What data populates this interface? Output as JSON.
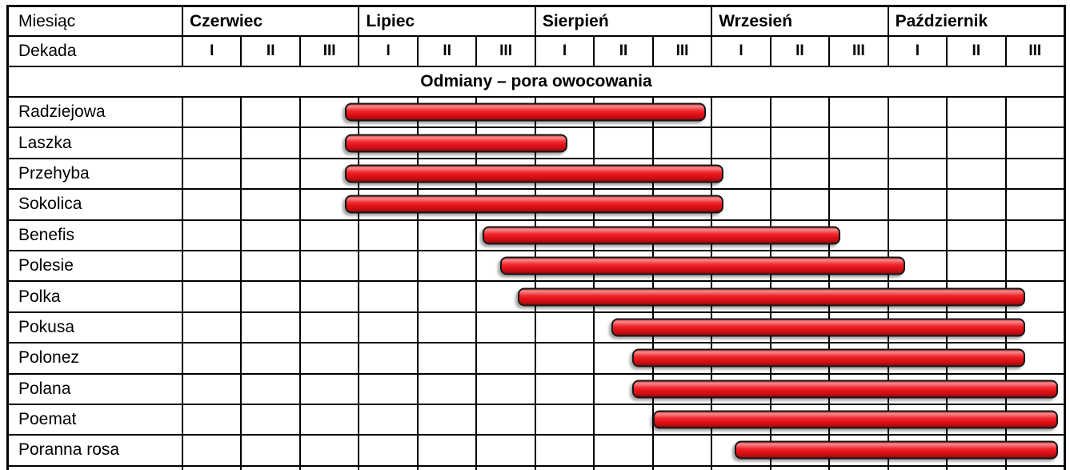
{
  "table": {
    "month_label": "Miesiąc",
    "decade_label": "Dekada",
    "section_title": "Odmiany – pora owocowania"
  },
  "colors": {
    "grid_line": "#000000",
    "background": "#ffffff",
    "text": "#000000",
    "bar_fill": "#e31218",
    "bar_highlight": "#f9898b",
    "bar_shadow_dark": "#8f0a0d",
    "bar_border": "#161616"
  },
  "chart_data": {
    "type": "bar",
    "subtype": "gantt-table",
    "title": "Odmiany – pora owocowania",
    "x_axis": {
      "months": [
        "Czerwiec",
        "Lipiec",
        "Sierpień",
        "Wrzesień",
        "Październik"
      ],
      "decade_labels": [
        "I",
        "II",
        "III"
      ],
      "decades_per_month": 3,
      "total_decades": 15,
      "unit": "dekada (1/3 miesiąca)"
    },
    "axis_note": "start/end w dekadach od początku czerwca: 0 = początek Czerwiec I, 15 = koniec Październik III",
    "series": [
      {
        "name": "Radziejowa",
        "start_decade": 2.75,
        "end_decade": 8.9
      },
      {
        "name": "Laszka",
        "start_decade": 2.75,
        "end_decade": 6.55
      },
      {
        "name": "Przehyba",
        "start_decade": 2.75,
        "end_decade": 9.2
      },
      {
        "name": "Sokolica",
        "start_decade": 2.75,
        "end_decade": 9.2
      },
      {
        "name": "Benefis",
        "start_decade": 5.1,
        "end_decade": 11.2
      },
      {
        "name": "Polesie",
        "start_decade": 5.4,
        "end_decade": 12.3
      },
      {
        "name": "Polka",
        "start_decade": 5.7,
        "end_decade": 14.35
      },
      {
        "name": "Pokusa",
        "start_decade": 7.3,
        "end_decade": 14.35
      },
      {
        "name": "Polonez",
        "start_decade": 7.65,
        "end_decade": 14.35
      },
      {
        "name": "Polana",
        "start_decade": 7.65,
        "end_decade": 14.9
      },
      {
        "name": "Poemat",
        "start_decade": 8.0,
        "end_decade": 14.9
      },
      {
        "name": "Poranna rosa",
        "start_decade": 9.4,
        "end_decade": 14.9
      }
    ]
  }
}
